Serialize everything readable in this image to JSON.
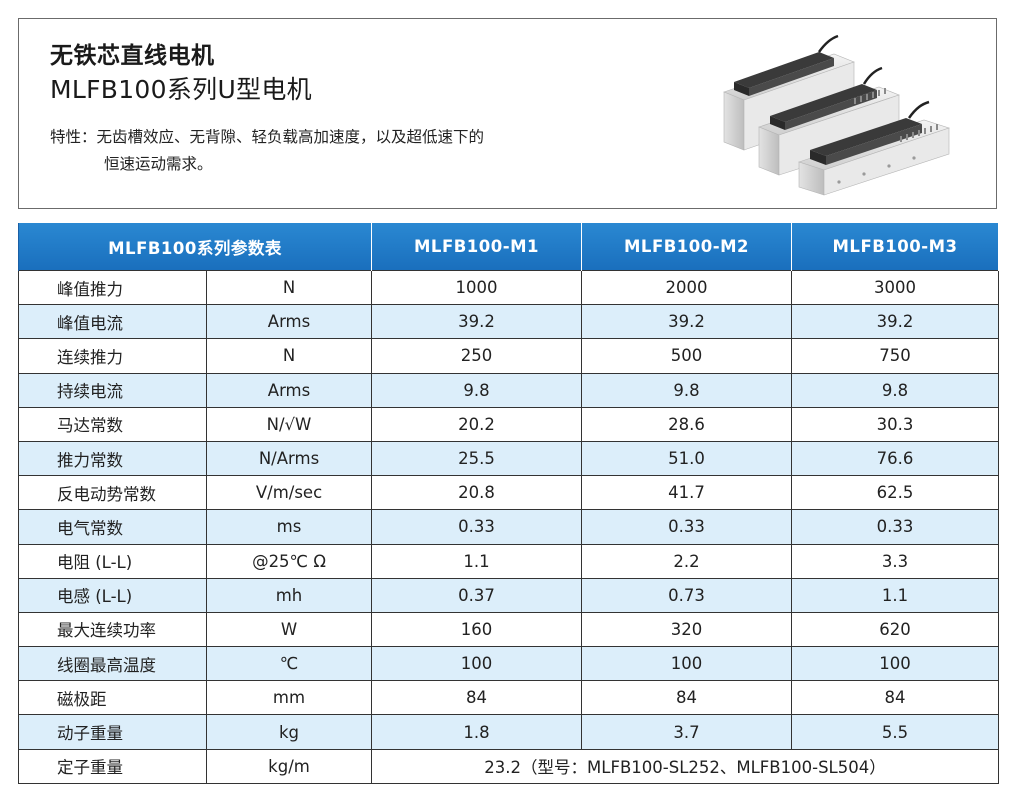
{
  "header": {
    "title": "无铁芯直线电机",
    "subtitle": "MLFB100系列U型电机",
    "features_label": "特性：",
    "features_line1": "无齿槽效应、无背隙、轻负载高加速度，以及超低速下的",
    "features_line2": "恒速运动需求。"
  },
  "table": {
    "headers": [
      "MLFB100系列参数表",
      "MLFB100-M1",
      "MLFB100-M2",
      "MLFB100-M3"
    ],
    "rows": [
      {
        "name": "峰值推力",
        "unit": "N",
        "m1": "1000",
        "m2": "2000",
        "m3": "3000"
      },
      {
        "name": "峰值电流",
        "unit": "Arms",
        "m1": "39.2",
        "m2": "39.2",
        "m3": "39.2"
      },
      {
        "name": "连续推力",
        "unit": "N",
        "m1": "250",
        "m2": "500",
        "m3": "750"
      },
      {
        "name": "持续电流",
        "unit": "Arms",
        "m1": "9.8",
        "m2": "9.8",
        "m3": "9.8"
      },
      {
        "name": "马达常数",
        "unit": "N/√W",
        "m1": "20.2",
        "m2": "28.6",
        "m3": "30.3"
      },
      {
        "name": "推力常数",
        "unit": "N/Arms",
        "m1": "25.5",
        "m2": "51.0",
        "m3": "76.6"
      },
      {
        "name": "反电动势常数",
        "unit": "V/m/sec",
        "m1": "20.8",
        "m2": "41.7",
        "m3": "62.5"
      },
      {
        "name": "电气常数",
        "unit": "ms",
        "m1": "0.33",
        "m2": "0.33",
        "m3": "0.33"
      },
      {
        "name": "电阻 (L-L)",
        "unit": "@25℃ Ω",
        "m1": "1.1",
        "m2": "2.2",
        "m3": "3.3"
      },
      {
        "name": "电感 (L-L)",
        "unit": "mh",
        "m1": "0.37",
        "m2": "0.73",
        "m3": "1.1"
      },
      {
        "name": "最大连续功率",
        "unit": "W",
        "m1": "160",
        "m2": "320",
        "m3": "620"
      },
      {
        "name": "线圈最高温度",
        "unit": "℃",
        "m1": "100",
        "m2": "100",
        "m3": "100"
      },
      {
        "name": "磁极距",
        "unit": "mm",
        "m1": "84",
        "m2": "84",
        "m3": "84"
      },
      {
        "name": "动子重量",
        "unit": "kg",
        "m1": "1.8",
        "m2": "3.7",
        "m3": "5.5"
      }
    ],
    "last_row": {
      "name": "定子重量",
      "unit": "kg/m",
      "value": "23.2（型号：MLFB100-SL252、MLFB100-SL504）"
    }
  },
  "colors": {
    "header_blue": "#1f7cc8",
    "row_alt": "#dceefa",
    "border": "#333333"
  }
}
